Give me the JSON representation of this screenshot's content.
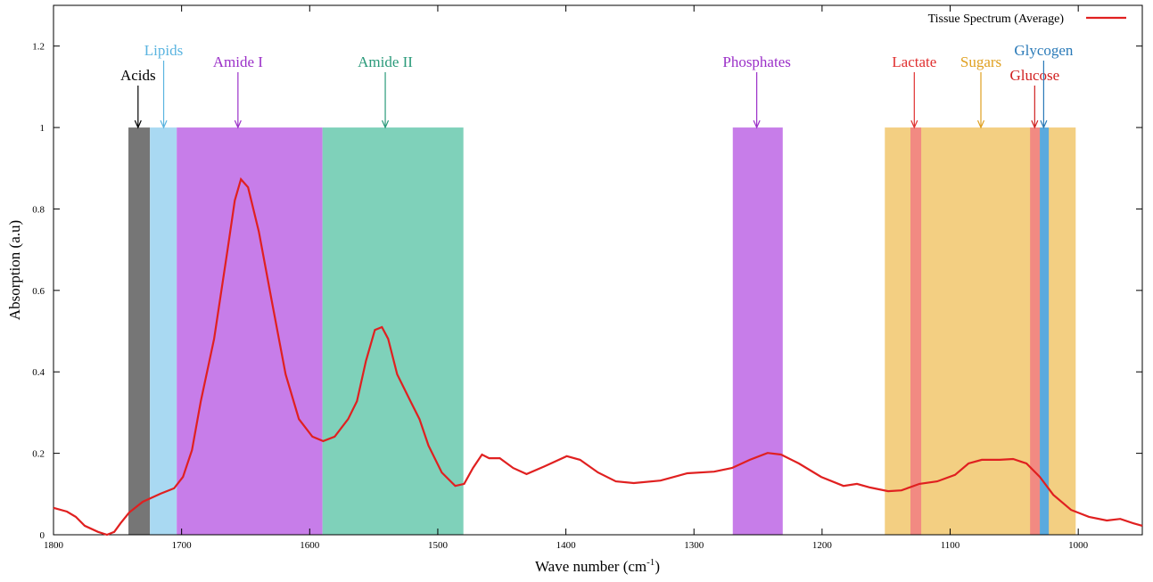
{
  "chart_data": {
    "type": "line",
    "y_label": "Absorption (a.u)",
    "x_label": "Wave number (cm",
    "x_label_sup": "-1",
    "x_label_close": ")",
    "xlim": [
      1800,
      950
    ],
    "ylim": [
      0,
      1.3
    ],
    "xticks": [
      1800,
      1700,
      1600,
      1500,
      1400,
      1300,
      1200,
      1100,
      1000
    ],
    "yticks": [
      0,
      0.2,
      0.4,
      0.6,
      0.8,
      1,
      1.2
    ],
    "legend_position": "upper right",
    "bands": [
      {
        "name": "Acids",
        "color": "#767676",
        "label_color": "#000000",
        "range": [
          1741.5,
          1724.7
        ],
        "height": 1,
        "arrow_x": 1734
      },
      {
        "name": "Lipids",
        "color": "#a9d9f2",
        "label_color": "#5ab4e0",
        "range": [
          1724.7,
          1703.8
        ],
        "height": 1,
        "arrow_x": 1714
      },
      {
        "name": "Amide I",
        "color": "#c77de9",
        "label_color": "#9b30c8",
        "range": [
          1703.8,
          1590
        ],
        "height": 1,
        "arrow_x": 1656
      },
      {
        "name": "Amide II",
        "color": "#7fd1ba",
        "label_color": "#2a9a7a",
        "range": [
          1590,
          1480
        ],
        "height": 1,
        "arrow_x": 1541
      },
      {
        "name": "Phosphates",
        "color": "#c77de9",
        "label_color": "#9b30c8",
        "range": [
          1269.7,
          1230.7
        ],
        "height": 1,
        "arrow_x": 1251
      },
      {
        "name": "Sugars",
        "color": "#f3cf82",
        "label_color": "#e0a020",
        "range": [
          1151,
          1002
        ],
        "height": 1,
        "arrow_x": 1076
      },
      {
        "name": "Lactate",
        "color": "#f28a82",
        "label_color": "#e03030",
        "range": [
          1131,
          1122.6
        ],
        "height": 1,
        "arrow_x": 1128
      },
      {
        "name": "Glucose",
        "color": "#f28a82",
        "label_color": "#d02020",
        "range": [
          1037.6,
          1030
        ],
        "height": 1,
        "arrow_x": 1034
      },
      {
        "name": "Glycogen",
        "color": "#5aaade",
        "label_color": "#2a7ab8",
        "range": [
          1030,
          1023
        ],
        "height": 1,
        "arrow_x": 1027
      }
    ],
    "series": [
      {
        "name": "Tissue Spectrum (Average)",
        "color": "#e02020",
        "x": [
          1800,
          1789.5,
          1782.6,
          1775.6,
          1765.2,
          1758.2,
          1752.6,
          1747.7,
          1740.8,
          1730.3,
          1716.4,
          1705.9,
          1698.9,
          1691.9,
          1685.0,
          1674.6,
          1664.1,
          1658.5,
          1653.7,
          1648.1,
          1639.7,
          1629.3,
          1618.8,
          1608.4,
          1597.9,
          1589.5,
          1580.5,
          1570.0,
          1563.1,
          1556.1,
          1549.1,
          1543.6,
          1538.7,
          1531.7,
          1521.3,
          1514.3,
          1507.3,
          1496.9,
          1486.4,
          1479.4,
          1472.5,
          1465.5,
          1459.9,
          1451.6,
          1441.1,
          1430.7,
          1416.7,
          1399.3,
          1388.9,
          1374.9,
          1361.0,
          1347.0,
          1326.1,
          1305.2,
          1284.3,
          1270.4,
          1256.4,
          1242.5,
          1232.1,
          1218.1,
          1200.7,
          1183.3,
          1172.8,
          1162.4,
          1148.4,
          1138.0,
          1124.0,
          1110.1,
          1096.2,
          1085.7,
          1075.3,
          1061.3,
          1050.9,
          1040.4,
          1030.0,
          1019.5,
          1005.6,
          991.6,
          977.7,
          967.2,
          956.8,
          950
        ],
        "values": [
          0.066,
          0.057,
          0.044,
          0.022,
          0.007,
          0,
          0.007,
          0.028,
          0.055,
          0.081,
          0.101,
          0.114,
          0.142,
          0.208,
          0.328,
          0.481,
          0.7,
          0.821,
          0.873,
          0.853,
          0.744,
          0.569,
          0.394,
          0.284,
          0.241,
          0.23,
          0.241,
          0.284,
          0.328,
          0.427,
          0.503,
          0.51,
          0.481,
          0.394,
          0.328,
          0.284,
          0.219,
          0.153,
          0.12,
          0.125,
          0.164,
          0.197,
          0.188,
          0.188,
          0.164,
          0.149,
          0.168,
          0.193,
          0.184,
          0.153,
          0.131,
          0.127,
          0.133,
          0.151,
          0.155,
          0.164,
          0.184,
          0.201,
          0.197,
          0.175,
          0.142,
          0.12,
          0.125,
          0.116,
          0.107,
          0.109,
          0.125,
          0.131,
          0.147,
          0.175,
          0.184,
          0.184,
          0.186,
          0.175,
          0.142,
          0.098,
          0.061,
          0.044,
          0.035,
          0.039,
          0.028,
          0.022
        ]
      }
    ]
  }
}
